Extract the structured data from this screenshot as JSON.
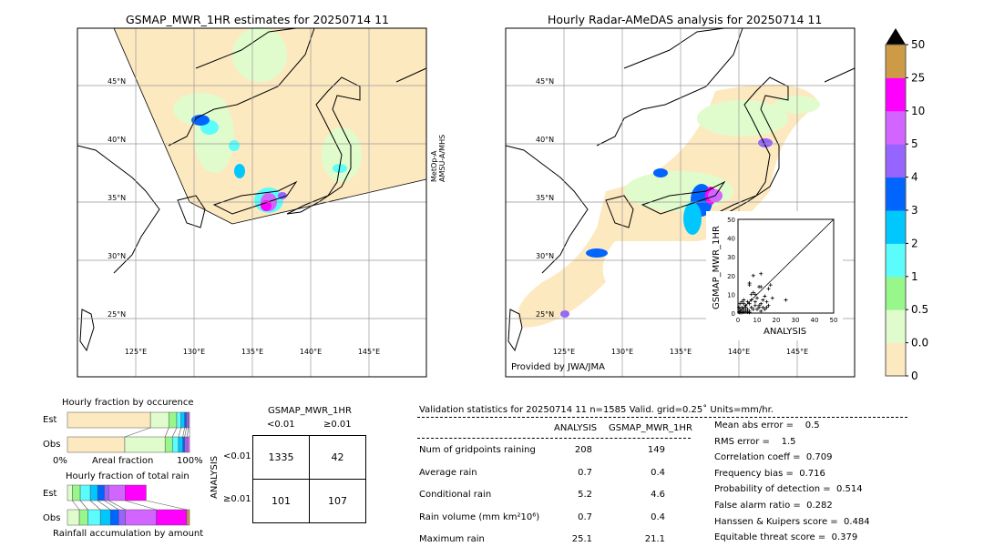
{
  "left_map": {
    "title": "GSMAP_MWR_1HR estimates for 20250714 11",
    "sensor_label": [
      "MetOp-A",
      "AMSU-A/MHS"
    ],
    "lat_labels": [
      "45°N",
      "40°N",
      "35°N",
      "30°N",
      "25°N"
    ],
    "lon_labels": [
      "125°E",
      "130°E",
      "135°E",
      "140°E",
      "145°E"
    ]
  },
  "right_map": {
    "title": "Hourly Radar-AMeDAS analysis for 20250714 11",
    "credit": "Provided by JWA/JMA",
    "lat_labels": [
      "45°N",
      "40°N",
      "35°N",
      "30°N",
      "25°N"
    ],
    "lon_labels": [
      "125°E",
      "130°E",
      "135°E",
      "140°E",
      "145°E"
    ]
  },
  "colorbar": {
    "tick_labels": [
      "0",
      "0.01",
      "0.5",
      "1",
      "2",
      "3",
      "4",
      "5",
      "10",
      "25",
      "50"
    ],
    "colors": [
      "#fde9c0",
      "#e0fccc",
      "#98f78a",
      "#5cfcfc",
      "#00c8ff",
      "#0064ff",
      "#9664ff",
      "#d264ff",
      "#ff00ff",
      "#cd9a46"
    ],
    "extend_color": "#000000"
  },
  "chart_data": [
    {
      "type": "scatter",
      "xlabel": "ANALYSIS",
      "ylabel": "GSMAP_MWR_1HR",
      "xlim": [
        0,
        50
      ],
      "ylim": [
        0,
        50
      ],
      "xticks": [
        "0",
        "10",
        "20",
        "30",
        "40",
        "50"
      ],
      "yticks": [
        "0",
        "10",
        "20",
        "30",
        "40",
        "50"
      ],
      "diagonal": true,
      "points": [
        [
          8,
          20
        ],
        [
          12,
          21
        ],
        [
          6,
          16
        ],
        [
          6,
          15
        ],
        [
          11,
          14
        ],
        [
          12,
          14
        ],
        [
          17,
          15
        ],
        [
          16,
          13
        ],
        [
          25,
          7
        ],
        [
          18,
          8
        ],
        [
          14,
          9
        ],
        [
          7,
          10
        ],
        [
          8,
          11
        ],
        [
          9,
          10
        ],
        [
          10,
          8
        ],
        [
          13,
          7
        ],
        [
          15,
          6
        ],
        [
          16,
          4
        ],
        [
          12,
          5
        ],
        [
          11,
          4
        ],
        [
          9,
          6
        ],
        [
          7,
          7
        ],
        [
          6,
          5
        ],
        [
          5,
          6
        ],
        [
          4,
          4
        ],
        [
          3,
          5
        ],
        [
          2,
          3
        ],
        [
          3,
          2
        ],
        [
          1,
          1
        ],
        [
          2,
          1
        ],
        [
          1,
          2
        ],
        [
          0.5,
          0.5
        ],
        [
          4,
          1
        ],
        [
          5,
          2
        ],
        [
          6,
          1
        ],
        [
          8,
          2
        ],
        [
          10,
          2
        ],
        [
          12,
          1
        ],
        [
          14,
          2
        ],
        [
          3,
          0.5
        ],
        [
          2,
          0.3
        ],
        [
          1,
          0.2
        ],
        [
          7,
          3
        ],
        [
          9,
          4
        ],
        [
          11,
          3
        ],
        [
          5,
          0.5
        ],
        [
          6,
          0.3
        ],
        [
          4,
          3
        ],
        [
          1,
          5
        ],
        [
          0.5,
          3
        ],
        [
          2,
          6
        ],
        [
          3,
          7
        ],
        [
          13,
          3
        ],
        [
          15,
          3
        ]
      ]
    },
    {
      "type": "bar",
      "title": "Hourly fraction by occurence",
      "xlabel": "Areal fraction",
      "xtick_labels": [
        "0%",
        "100%"
      ],
      "categories": [
        "Est",
        "Obs"
      ],
      "stacked_cumulative_percent": {
        "Est": [
          68,
          83,
          89.5,
          93,
          96,
          97.5,
          99,
          100
        ],
        "Obs": [
          47,
          80,
          86,
          91,
          94.5,
          96,
          98,
          100
        ]
      },
      "segment_colors": [
        "#fde9c0",
        "#e0fccc",
        "#98f78a",
        "#5cfcfc",
        "#00c8ff",
        "#0064ff",
        "#9664ff",
        "#d264ff"
      ]
    },
    {
      "type": "bar",
      "title": "Hourly fraction of total rain",
      "xlabel": "Rainfall accumulation by amount",
      "categories": [
        "Est",
        "Obs"
      ],
      "stacked_cumulative_percent": {
        "Est": [
          4,
          10.5,
          18.75,
          24.75,
          30.25,
          33.75,
          47.25,
          64.5
        ],
        "Obs": [
          9.75,
          16.75,
          27,
          35.25,
          42,
          47.5,
          72.75,
          97.75,
          100
        ]
      },
      "segment_colors": [
        "#e0fccc",
        "#98f78a",
        "#5cfcfc",
        "#00c8ff",
        "#0064ff",
        "#9664ff",
        "#d264ff",
        "#ff00ff",
        "#cd9a46"
      ]
    }
  ],
  "contingency": {
    "title": "GSMAP_MWR_1HR",
    "col_labels": [
      "<0.01",
      "≥0.01"
    ],
    "row_axis": "ANALYSIS",
    "row_labels": [
      "<0.01",
      "≥0.01"
    ],
    "cells": [
      [
        "1335",
        "42"
      ],
      [
        "101",
        "107"
      ]
    ]
  },
  "stats": {
    "header": "Validation statistics for 20250714 11  n=1585 Valid. grid=0.25˚ Units=mm/hr.",
    "col_analysis": "ANALYSIS",
    "col_gsmap": "GSMAP_MWR_1HR",
    "rows": [
      {
        "label": "Num of gridpoints raining",
        "a": "208",
        "g": "149"
      },
      {
        "label": "Average rain",
        "a": "0.7",
        "g": "0.4"
      },
      {
        "label": "Conditional rain",
        "a": "5.2",
        "g": "4.6"
      },
      {
        "label": "Rain volume (mm km²10⁶)",
        "a": "0.7",
        "g": "0.4"
      },
      {
        "label": "Maximum rain",
        "a": "25.1",
        "g": "21.1"
      }
    ],
    "scores": [
      "Mean abs error =    0.5",
      "RMS error =    1.5",
      "Correlation coeff =  0.709",
      "Frequency bias =  0.716",
      "Probability of detection =  0.514",
      "False alarm ratio =  0.282",
      "Hanssen & Kuipers score =  0.484",
      "Equitable threat score =  0.379"
    ]
  }
}
